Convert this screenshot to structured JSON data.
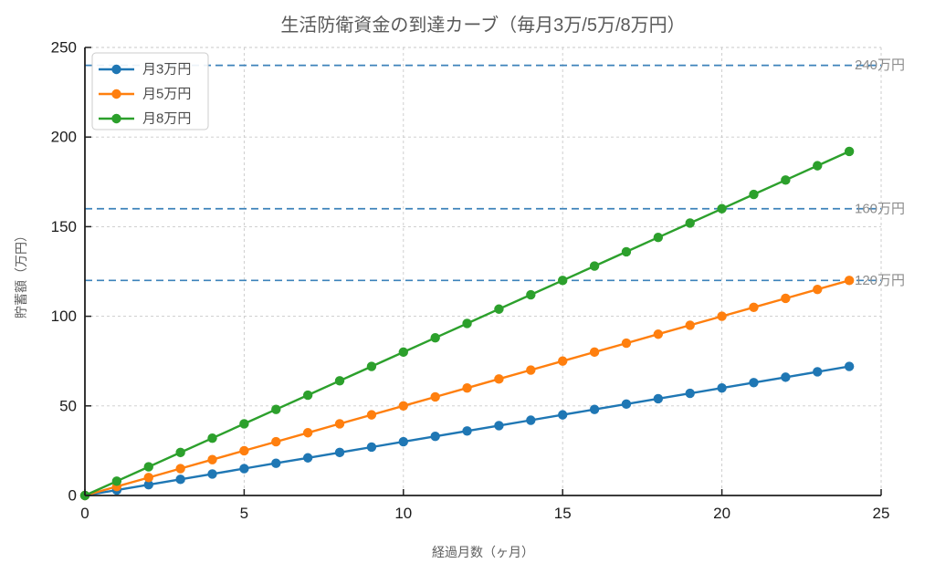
{
  "chart_data": {
    "type": "line",
    "title": "生活防衛資金の到達カーブ（毎月3万/5万/8万円）",
    "xlabel": "経過月数（ヶ月）",
    "ylabel": "貯蓄額（万円）",
    "x": [
      0,
      1,
      2,
      3,
      4,
      5,
      6,
      7,
      8,
      9,
      10,
      11,
      12,
      13,
      14,
      15,
      16,
      17,
      18,
      19,
      20,
      21,
      22,
      23,
      24
    ],
    "series": [
      {
        "name": "月3万円",
        "color": "#1f77b4",
        "values": [
          0,
          3,
          6,
          9,
          12,
          15,
          18,
          21,
          24,
          27,
          30,
          33,
          36,
          39,
          42,
          45,
          48,
          51,
          54,
          57,
          60,
          63,
          66,
          69,
          72
        ]
      },
      {
        "name": "月5万円",
        "color": "#ff7f0e",
        "values": [
          0,
          5,
          10,
          15,
          20,
          25,
          30,
          35,
          40,
          45,
          50,
          55,
          60,
          65,
          70,
          75,
          80,
          85,
          90,
          95,
          100,
          105,
          110,
          115,
          120
        ]
      },
      {
        "name": "月8万円",
        "color": "#2ca02c",
        "values": [
          0,
          8,
          16,
          24,
          32,
          40,
          48,
          56,
          64,
          72,
          80,
          88,
          96,
          104,
          112,
          120,
          128,
          136,
          144,
          152,
          160,
          168,
          176,
          184,
          192
        ]
      }
    ],
    "thresholds": [
      {
        "value": 120,
        "label": "120万円"
      },
      {
        "value": 160,
        "label": "160万円"
      },
      {
        "value": 240,
        "label": "240万円"
      }
    ],
    "xticks": [
      0,
      5,
      10,
      15,
      20,
      25
    ],
    "yticks": [
      0,
      50,
      100,
      150,
      200,
      250
    ],
    "xlim": [
      0,
      25
    ],
    "ylim": [
      0,
      250
    ],
    "grid": true,
    "legend_position": "upper left",
    "colors": {
      "threshold_line": "#3c82ba",
      "threshold_label": "#8c8c8c",
      "grid_line": "#c9c9c9",
      "spine": "#1f1f1f",
      "tick_label": "#1c1c1c",
      "title_text": "#595959",
      "axis_label_text": "#5f5f5f",
      "legend_text": "#4c4c4c",
      "legend_border": "#cccccc"
    }
  }
}
